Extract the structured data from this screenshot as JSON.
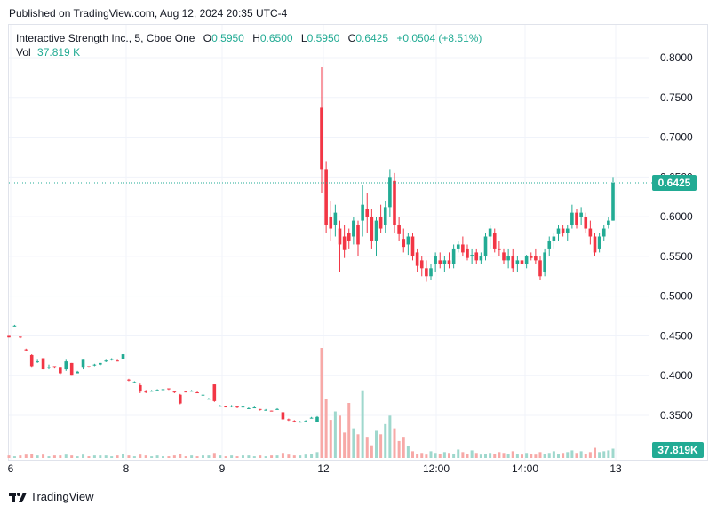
{
  "header": {
    "published": "Published on TradingView.com, Aug 12, 2024 20:35 UTC-4"
  },
  "legend": {
    "title": "Interactive Strength Inc., 5, Cboe One",
    "o_label": "O",
    "o_value": "0.5950",
    "h_label": "H",
    "h_value": "0.6500",
    "l_label": "L",
    "l_value": "0.5950",
    "c_label": "C",
    "c_value": "0.6425",
    "change": "+0.0504 (+8.51%)",
    "vol_label": "Vol",
    "vol_value": "37.819 K"
  },
  "footer": {
    "brand": "TradingView"
  },
  "colors": {
    "up": "#22ab94",
    "down": "#f23645",
    "upVol": "#9fd8cd",
    "downVol": "#f7a9a7",
    "grid": "#f0f3fa"
  },
  "chart_data": {
    "type": "candlestick",
    "y_ticks": [
      "0.8000",
      "0.7500",
      "0.7000",
      "0.6500",
      "0.6000",
      "0.5500",
      "0.5000",
      "0.4500",
      "0.4000",
      "0.3500"
    ],
    "x_ticks": [
      "6",
      "8",
      "9",
      "12",
      "12:00",
      "14:00",
      "13"
    ],
    "last_price": "0.6425",
    "last_volume": "37.819K",
    "ylim": [
      0.31,
      0.825
    ],
    "candles": [
      [
        0.45,
        0.45,
        0.448,
        0.448
      ],
      [
        0.463,
        0.464,
        0.462,
        0.463
      ],
      [
        0.449,
        0.449,
        0.447,
        0.448
      ],
      [
        0.433,
        0.434,
        0.431,
        0.432
      ],
      [
        0.426,
        0.427,
        0.41,
        0.412
      ],
      [
        0.418,
        0.42,
        0.416,
        0.418
      ],
      [
        0.422,
        0.422,
        0.408,
        0.408
      ],
      [
        0.41,
        0.414,
        0.408,
        0.411
      ],
      [
        0.412,
        0.412,
        0.409,
        0.41
      ],
      [
        0.41,
        0.41,
        0.402,
        0.403
      ],
      [
        0.408,
        0.42,
        0.406,
        0.418
      ],
      [
        0.416,
        0.416,
        0.4,
        0.4
      ],
      [
        0.403,
        0.406,
        0.403,
        0.405
      ],
      [
        0.41,
        0.42,
        0.408,
        0.42
      ],
      [
        0.412,
        0.412,
        0.41,
        0.411
      ],
      [
        0.413,
        0.415,
        0.412,
        0.414
      ],
      [
        0.414,
        0.416,
        0.413,
        0.416
      ],
      [
        0.419,
        0.42,
        0.417,
        0.419
      ],
      [
        0.42,
        0.422,
        0.419,
        0.421
      ],
      [
        0.419,
        0.42,
        0.418,
        0.418
      ],
      [
        0.421,
        0.428,
        0.42,
        0.427
      ],
      [
        0.395,
        0.396,
        0.393,
        0.394
      ],
      [
        0.392,
        0.393,
        0.391,
        0.392
      ],
      [
        0.388,
        0.39,
        0.378,
        0.38
      ],
      [
        0.38,
        0.382,
        0.378,
        0.379
      ],
      [
        0.381,
        0.382,
        0.38,
        0.381
      ],
      [
        0.382,
        0.383,
        0.381,
        0.382
      ],
      [
        0.383,
        0.384,
        0.382,
        0.383
      ],
      [
        0.384,
        0.384,
        0.382,
        0.383
      ],
      [
        0.38,
        0.38,
        0.378,
        0.379
      ],
      [
        0.376,
        0.377,
        0.364,
        0.365
      ],
      [
        0.38,
        0.38,
        0.379,
        0.379
      ],
      [
        0.381,
        0.382,
        0.38,
        0.381
      ],
      [
        0.379,
        0.38,
        0.378,
        0.378
      ],
      [
        0.376,
        0.377,
        0.375,
        0.376
      ],
      [
        0.371,
        0.372,
        0.37,
        0.371
      ],
      [
        0.389,
        0.389,
        0.367,
        0.368
      ],
      [
        0.362,
        0.363,
        0.361,
        0.362
      ],
      [
        0.362,
        0.362,
        0.36,
        0.36
      ],
      [
        0.361,
        0.363,
        0.36,
        0.362
      ],
      [
        0.361,
        0.361,
        0.359,
        0.36
      ],
      [
        0.361,
        0.362,
        0.36,
        0.361
      ],
      [
        0.359,
        0.36,
        0.358,
        0.359
      ],
      [
        0.36,
        0.361,
        0.359,
        0.36
      ],
      [
        0.358,
        0.358,
        0.356,
        0.357
      ],
      [
        0.357,
        0.358,
        0.356,
        0.357
      ],
      [
        0.356,
        0.356,
        0.355,
        0.355
      ],
      [
        0.358,
        0.359,
        0.357,
        0.358
      ],
      [
        0.354,
        0.354,
        0.344,
        0.345
      ],
      [
        0.345,
        0.346,
        0.343,
        0.344
      ],
      [
        0.343,
        0.344,
        0.341,
        0.342
      ],
      [
        0.342,
        0.343,
        0.341,
        0.342
      ],
      [
        0.343,
        0.344,
        0.342,
        0.343
      ],
      [
        0.347,
        0.348,
        0.346,
        0.347
      ],
      [
        0.342,
        0.349,
        0.341,
        0.348
      ],
      [
        0.737,
        0.788,
        0.63,
        0.66
      ],
      [
        0.66,
        0.67,
        0.58,
        0.59
      ],
      [
        0.6,
        0.62,
        0.57,
        0.585
      ],
      [
        0.59,
        0.615,
        0.575,
        0.605
      ],
      [
        0.585,
        0.595,
        0.53,
        0.565
      ],
      [
        0.575,
        0.59,
        0.548,
        0.558
      ],
      [
        0.58,
        0.585,
        0.56,
        0.57
      ],
      [
        0.575,
        0.6,
        0.565,
        0.595
      ],
      [
        0.59,
        0.595,
        0.55,
        0.565
      ],
      [
        0.595,
        0.64,
        0.575,
        0.615
      ],
      [
        0.61,
        0.63,
        0.58,
        0.6
      ],
      [
        0.6,
        0.61,
        0.56,
        0.57
      ],
      [
        0.57,
        0.6,
        0.55,
        0.595
      ],
      [
        0.6,
        0.615,
        0.58,
        0.585
      ],
      [
        0.59,
        0.62,
        0.58,
        0.612
      ],
      [
        0.612,
        0.66,
        0.6,
        0.65
      ],
      [
        0.645,
        0.655,
        0.58,
        0.59
      ],
      [
        0.59,
        0.6,
        0.57,
        0.578
      ],
      [
        0.572,
        0.585,
        0.555,
        0.562
      ],
      [
        0.565,
        0.58,
        0.552,
        0.575
      ],
      [
        0.575,
        0.58,
        0.545,
        0.55
      ],
      [
        0.555,
        0.56,
        0.53,
        0.538
      ],
      [
        0.545,
        0.55,
        0.525,
        0.535
      ],
      [
        0.535,
        0.545,
        0.518,
        0.525
      ],
      [
        0.525,
        0.54,
        0.52,
        0.535
      ],
      [
        0.54,
        0.555,
        0.53,
        0.55
      ],
      [
        0.545,
        0.555,
        0.535,
        0.54
      ],
      [
        0.54,
        0.55,
        0.53,
        0.545
      ],
      [
        0.545,
        0.555,
        0.535,
        0.54
      ],
      [
        0.54,
        0.565,
        0.535,
        0.56
      ],
      [
        0.56,
        0.57,
        0.555,
        0.565
      ],
      [
        0.565,
        0.575,
        0.55,
        0.555
      ],
      [
        0.56,
        0.565,
        0.545,
        0.548
      ],
      [
        0.55,
        0.56,
        0.54,
        0.552
      ],
      [
        0.555,
        0.56,
        0.54,
        0.545
      ],
      [
        0.545,
        0.555,
        0.54,
        0.55
      ],
      [
        0.55,
        0.58,
        0.545,
        0.575
      ],
      [
        0.575,
        0.59,
        0.56,
        0.585
      ],
      [
        0.58,
        0.585,
        0.555,
        0.56
      ],
      [
        0.56,
        0.57,
        0.55,
        0.558
      ],
      [
        0.555,
        0.56,
        0.54,
        0.545
      ],
      [
        0.545,
        0.56,
        0.535,
        0.55
      ],
      [
        0.55,
        0.56,
        0.53,
        0.535
      ],
      [
        0.54,
        0.55,
        0.53,
        0.545
      ],
      [
        0.545,
        0.555,
        0.535,
        0.54
      ],
      [
        0.54,
        0.552,
        0.535,
        0.55
      ],
      [
        0.55,
        0.555,
        0.545,
        0.548
      ],
      [
        0.55,
        0.56,
        0.54,
        0.545
      ],
      [
        0.545,
        0.55,
        0.52,
        0.525
      ],
      [
        0.53,
        0.56,
        0.525,
        0.555
      ],
      [
        0.56,
        0.575,
        0.55,
        0.57
      ],
      [
        0.57,
        0.58,
        0.56,
        0.575
      ],
      [
        0.578,
        0.59,
        0.57,
        0.585
      ],
      [
        0.585,
        0.59,
        0.575,
        0.58
      ],
      [
        0.58,
        0.59,
        0.57,
        0.585
      ],
      [
        0.59,
        0.615,
        0.585,
        0.605
      ],
      [
        0.605,
        0.61,
        0.585,
        0.59
      ],
      [
        0.6,
        0.612,
        0.59,
        0.605
      ],
      [
        0.6,
        0.605,
        0.58,
        0.585
      ],
      [
        0.585,
        0.595,
        0.565,
        0.575
      ],
      [
        0.575,
        0.58,
        0.55,
        0.555
      ],
      [
        0.56,
        0.58,
        0.555,
        0.575
      ],
      [
        0.575,
        0.59,
        0.57,
        0.585
      ],
      [
        0.59,
        0.6,
        0.585,
        0.595
      ],
      [
        0.595,
        0.65,
        0.595,
        0.6425
      ]
    ],
    "volumes": [
      0.3,
      0.2,
      0.3,
      0.4,
      0.5,
      0.3,
      0.4,
      0.2,
      0.3,
      0.3,
      0.4,
      0.3,
      0.2,
      0.4,
      0.2,
      0.3,
      0.3,
      0.3,
      0.2,
      0.3,
      0.5,
      0.3,
      0.2,
      0.4,
      0.3,
      0.2,
      0.3,
      0.2,
      0.2,
      0.3,
      0.5,
      0.2,
      0.3,
      0.2,
      0.3,
      0.3,
      0.6,
      0.3,
      0.2,
      0.3,
      0.2,
      0.3,
      0.3,
      0.2,
      0.3,
      0.2,
      0.3,
      0.3,
      0.6,
      0.4,
      0.3,
      0.3,
      0.4,
      0.5,
      0.7,
      13.0,
      7.0,
      4.5,
      5.5,
      5.0,
      3.0,
      6.5,
      3.5,
      2.8,
      8.0,
      2.5,
      1.5,
      3.2,
      2.8,
      4.0,
      5.0,
      3.5,
      2.0,
      2.5,
      1.4,
      0.8,
      0.5,
      0.6,
      0.4,
      0.8,
      0.6,
      0.5,
      0.7,
      0.6,
      0.5,
      1.0,
      0.7,
      0.5,
      0.9,
      0.6,
      0.4,
      0.5,
      0.6,
      0.5,
      0.7,
      0.6,
      0.5,
      0.8,
      0.5,
      0.4,
      0.6,
      0.5,
      0.4,
      0.7,
      0.5,
      0.6,
      0.8,
      0.5,
      0.6,
      0.7,
      0.9,
      0.6,
      0.8,
      0.5,
      0.7,
      1.2,
      0.7,
      0.8,
      0.9,
      1.1,
      1.4
    ]
  }
}
